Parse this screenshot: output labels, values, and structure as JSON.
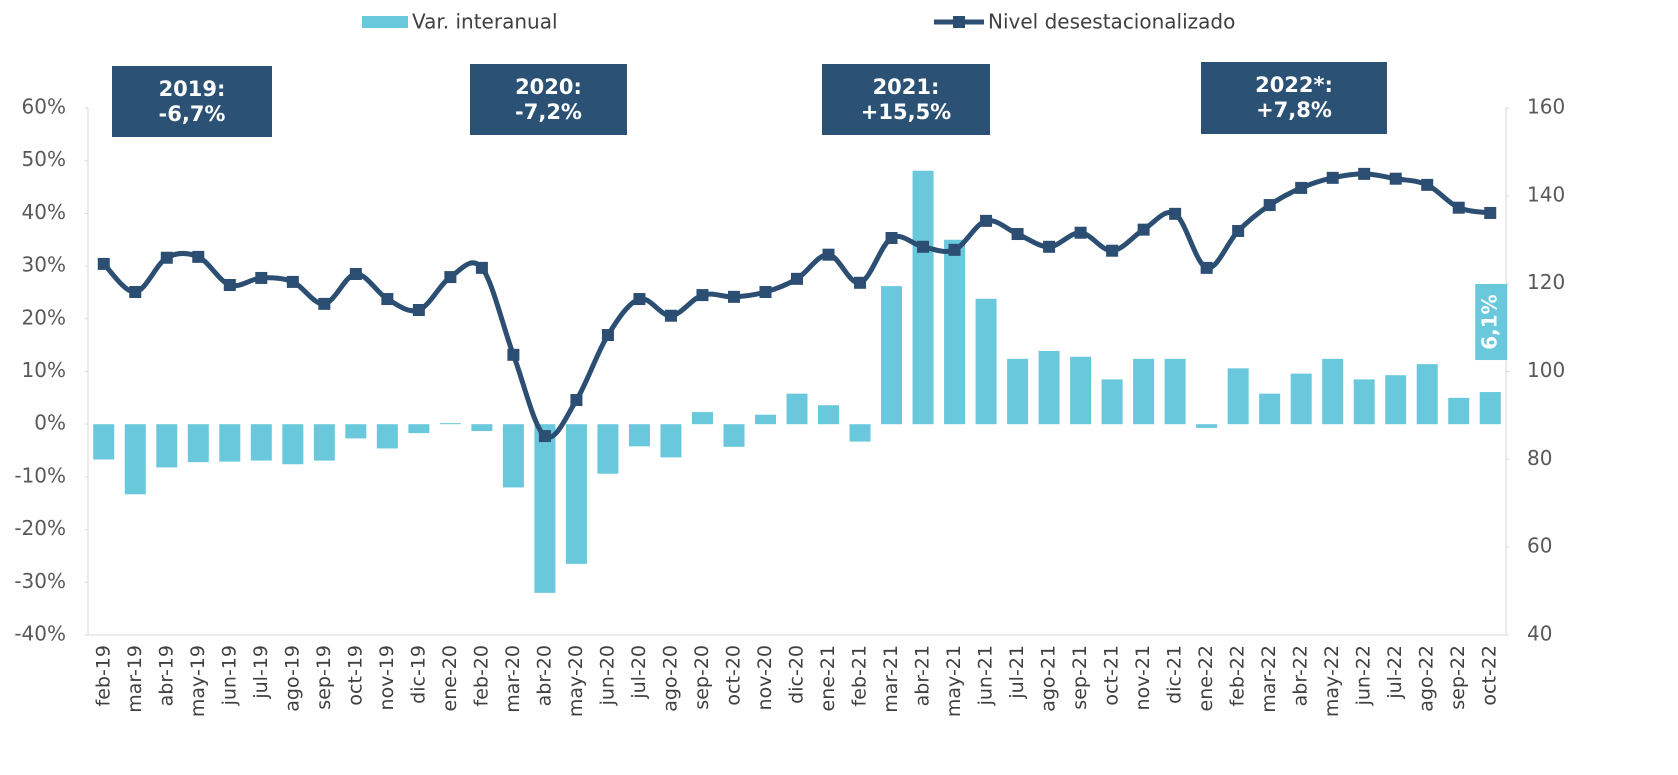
{
  "chart_data": {
    "type": "bar",
    "categories": [
      "feb-19",
      "mar-19",
      "abr-19",
      "may-19",
      "jun-19",
      "jul-19",
      "ago-19",
      "sep-19",
      "oct-19",
      "nov-19",
      "dic-19",
      "ene-20",
      "feb-20",
      "mar-20",
      "abr-20",
      "may-20",
      "jun-20",
      "jul-20",
      "ago-20",
      "sep-20",
      "oct-20",
      "nov-20",
      "dic-20",
      "ene-21",
      "feb-21",
      "mar-21",
      "abr-21",
      "may-21",
      "jun-21",
      "jul-21",
      "ago-21",
      "sep-21",
      "oct-21",
      "nov-21",
      "dic-21",
      "ene-22",
      "feb-22",
      "mar-22",
      "abr-22",
      "may-22",
      "jun-22",
      "jul-22",
      "ago-22",
      "sep-22",
      "oct-22"
    ],
    "series": [
      {
        "name": "Var. interanual",
        "type": "bar",
        "color": "#69c8dc",
        "values": [
          -6.7,
          -13.3,
          -8.2,
          -7.2,
          -7.1,
          -6.9,
          -7.6,
          -6.9,
          -2.7,
          -4.6,
          -1.7,
          0.2,
          -1.3,
          -12,
          -32,
          -26.5,
          -9.4,
          -4.2,
          -6.3,
          2.3,
          -4.3,
          1.8,
          5.8,
          3.6,
          -3.3,
          26.2,
          48.1,
          35,
          23.8,
          12.4,
          13.9,
          12.8,
          8.5,
          12.4,
          12.4,
          -0.7,
          10.6,
          5.8,
          9.6,
          12.4,
          8.5,
          9.3,
          11.4,
          5,
          6.1
        ],
        "value_labels": [
          null,
          null,
          null,
          null,
          null,
          null,
          null,
          null,
          null,
          null,
          null,
          null,
          null,
          null,
          null,
          null,
          null,
          null,
          null,
          null,
          null,
          null,
          null,
          null,
          null,
          null,
          null,
          null,
          null,
          null,
          null,
          null,
          null,
          null,
          null,
          null,
          null,
          null,
          null,
          null,
          null,
          null,
          null,
          null,
          "6,1%"
        ]
      },
      {
        "name": "Nivel desestacionalizado",
        "type": "line",
        "axis": "y2",
        "color": "#2b4e72",
        "values": [
          124.5,
          118.1,
          125.9,
          126.1,
          119.7,
          121.3,
          120.4,
          115.4,
          122.2,
          116.5,
          114,
          121.5,
          123.6,
          103.8,
          85.3,
          93.5,
          108.3,
          116.5,
          112.7,
          117.4,
          117,
          118.1,
          121.1,
          126.6,
          120.2,
          130.4,
          128.4,
          127.7,
          134.3,
          131.3,
          128.4,
          131.6,
          127.5,
          132.3,
          135.9,
          123.6,
          132,
          137.9,
          141.8,
          144.1,
          145,
          143.9,
          142.5,
          137.3,
          136.1
        ]
      }
    ],
    "ylim": [
      -40,
      60
    ],
    "yticks": [
      {
        "value": -40,
        "label": "-40%"
      },
      {
        "value": -30,
        "label": "-30%"
      },
      {
        "value": -20,
        "label": "-20%"
      },
      {
        "value": -10,
        "label": "-10%"
      },
      {
        "value": 0,
        "label": "0%"
      },
      {
        "value": 10,
        "label": "10%"
      },
      {
        "value": 20,
        "label": "20%"
      },
      {
        "value": 30,
        "label": "30%"
      },
      {
        "value": 40,
        "label": "40%"
      },
      {
        "value": 50,
        "label": "50%"
      },
      {
        "value": 60,
        "label": "60%"
      }
    ],
    "y2lim": [
      40,
      160
    ],
    "y2ticks": [
      40,
      60,
      80,
      100,
      120,
      140,
      160
    ],
    "grid": false,
    "legend": "top",
    "annotations": [
      {
        "lines": [
          "2019:",
          "-6,7%"
        ]
      },
      {
        "lines": [
          "2020:",
          "-7,2%"
        ]
      },
      {
        "lines": [
          "2021:",
          "+15,5%"
        ]
      },
      {
        "lines": [
          "2022*:",
          "+7,8%"
        ]
      }
    ]
  }
}
